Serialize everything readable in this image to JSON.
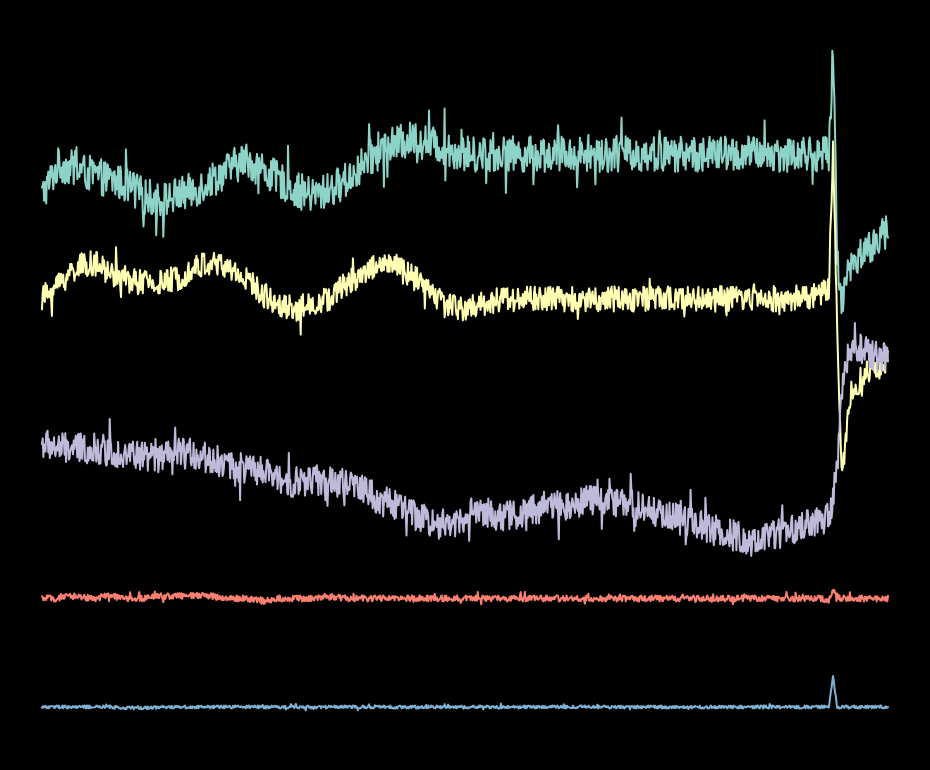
{
  "chart_data": {
    "type": "line",
    "title": "",
    "xlabel": "",
    "ylabel": "",
    "grid": false,
    "legend": "none",
    "background": "#000000",
    "x": [
      0,
      0.02,
      0.04,
      0.06,
      0.08,
      0.1,
      0.12,
      0.14,
      0.16,
      0.18,
      0.2,
      0.22,
      0.24,
      0.26,
      0.28,
      0.3,
      0.32,
      0.34,
      0.36,
      0.38,
      0.4,
      0.42,
      0.44,
      0.46,
      0.48,
      0.5,
      0.52,
      0.54,
      0.56,
      0.58,
      0.6,
      0.62,
      0.64,
      0.66,
      0.68,
      0.7,
      0.72,
      0.74,
      0.76,
      0.78,
      0.8,
      0.82,
      0.84,
      0.86,
      0.88,
      0.9,
      0.92,
      0.93,
      0.935,
      0.94,
      0.945,
      0.95,
      0.955,
      0.96,
      0.97,
      0.98,
      1.0
    ],
    "series": [
      {
        "color": "#8dd3c7",
        "values": [
          4.0,
          4.6,
          4.5,
          4.4,
          4.3,
          4.2,
          4.0,
          3.9,
          4.0,
          4.1,
          4.3,
          4.5,
          4.7,
          4.5,
          4.3,
          4.1,
          4.0,
          4.1,
          4.3,
          4.6,
          4.9,
          5.0,
          5.1,
          5.0,
          4.9,
          4.8,
          4.8,
          4.8,
          4.8,
          4.8,
          4.8,
          4.8,
          4.8,
          4.8,
          4.8,
          4.8,
          4.8,
          4.8,
          4.8,
          4.8,
          4.8,
          4.8,
          4.8,
          4.8,
          4.8,
          4.8,
          4.8,
          4.8,
          6.8,
          3.0,
          1.9,
          2.3,
          2.6,
          2.8,
          2.9,
          3.0,
          3.3
        ],
        "noise": 0.35
      },
      {
        "color": "#ffffb3",
        "values": [
          2.0,
          2.3,
          2.6,
          2.7,
          2.5,
          2.4,
          2.3,
          2.3,
          2.4,
          2.6,
          2.7,
          2.6,
          2.4,
          2.1,
          1.9,
          1.8,
          1.9,
          2.0,
          2.3,
          2.5,
          2.7,
          2.6,
          2.4,
          2.1,
          1.9,
          1.8,
          1.9,
          2.0,
          2.0,
          2.0,
          2.0,
          2.0,
          2.0,
          2.0,
          2.0,
          2.0,
          2.0,
          2.0,
          2.0,
          2.0,
          2.0,
          2.0,
          2.0,
          2.0,
          2.0,
          2.0,
          2.1,
          2.2,
          5.0,
          1.5,
          -1.5,
          -0.8,
          0.1,
          0.3,
          0.5,
          0.6,
          0.8
        ],
        "noise": 0.25
      },
      {
        "color": "#bebada",
        "values": [
          -0.8,
          -0.9,
          -0.9,
          -0.9,
          -0.95,
          -1.0,
          -1.05,
          -1.1,
          -1.0,
          -1.0,
          -1.1,
          -1.2,
          -1.3,
          -1.35,
          -1.5,
          -1.55,
          -1.5,
          -1.55,
          -1.6,
          -1.7,
          -1.9,
          -2.0,
          -2.2,
          -2.3,
          -2.4,
          -2.2,
          -2.1,
          -2.2,
          -2.2,
          -2.1,
          -2.0,
          -2.0,
          -1.9,
          -1.9,
          -1.95,
          -2.0,
          -2.1,
          -2.2,
          -2.3,
          -2.4,
          -2.5,
          -2.6,
          -2.7,
          -2.6,
          -2.5,
          -2.4,
          -2.3,
          -2.2,
          -1.9,
          -1.2,
          0.0,
          0.8,
          1.0,
          1.1,
          1.0,
          0.9,
          0.85
        ],
        "noise": 0.3
      },
      {
        "color": "#fb8072",
        "values": [
          -3.8,
          -3.8,
          -3.75,
          -3.8,
          -3.75,
          -3.8,
          -3.8,
          -3.75,
          -3.75,
          -3.75,
          -3.75,
          -3.8,
          -3.8,
          -3.85,
          -3.8,
          -3.8,
          -3.8,
          -3.75,
          -3.8,
          -3.8,
          -3.8,
          -3.8,
          -3.8,
          -3.8,
          -3.8,
          -3.8,
          -3.8,
          -3.8,
          -3.8,
          -3.8,
          -3.8,
          -3.8,
          -3.8,
          -3.8,
          -3.8,
          -3.8,
          -3.8,
          -3.8,
          -3.8,
          -3.8,
          -3.8,
          -3.8,
          -3.8,
          -3.8,
          -3.8,
          -3.8,
          -3.8,
          -3.85,
          -3.6,
          -3.75,
          -3.8,
          -3.8,
          -3.8,
          -3.8,
          -3.8,
          -3.8,
          -3.8
        ],
        "noise": 0.06
      },
      {
        "color": "#80b1d3",
        "values": [
          -5.9,
          -5.9,
          -5.9,
          -5.9,
          -5.9,
          -5.92,
          -5.92,
          -5.9,
          -5.9,
          -5.9,
          -5.9,
          -5.9,
          -5.9,
          -5.9,
          -5.9,
          -5.9,
          -5.9,
          -5.9,
          -5.9,
          -5.9,
          -5.9,
          -5.9,
          -5.9,
          -5.9,
          -5.9,
          -5.9,
          -5.9,
          -5.9,
          -5.9,
          -5.9,
          -5.9,
          -5.9,
          -5.9,
          -5.9,
          -5.9,
          -5.9,
          -5.9,
          -5.9,
          -5.9,
          -5.9,
          -5.9,
          -5.9,
          -5.9,
          -5.9,
          -5.9,
          -5.9,
          -5.9,
          -5.9,
          -5.3,
          -5.9,
          -5.9,
          -5.9,
          -5.9,
          -5.9,
          -5.9,
          -5.9,
          -5.9
        ],
        "noise": 0.03
      }
    ],
    "ylim": [
      -6.5,
      7.2
    ],
    "xlim": [
      0,
      1
    ]
  }
}
